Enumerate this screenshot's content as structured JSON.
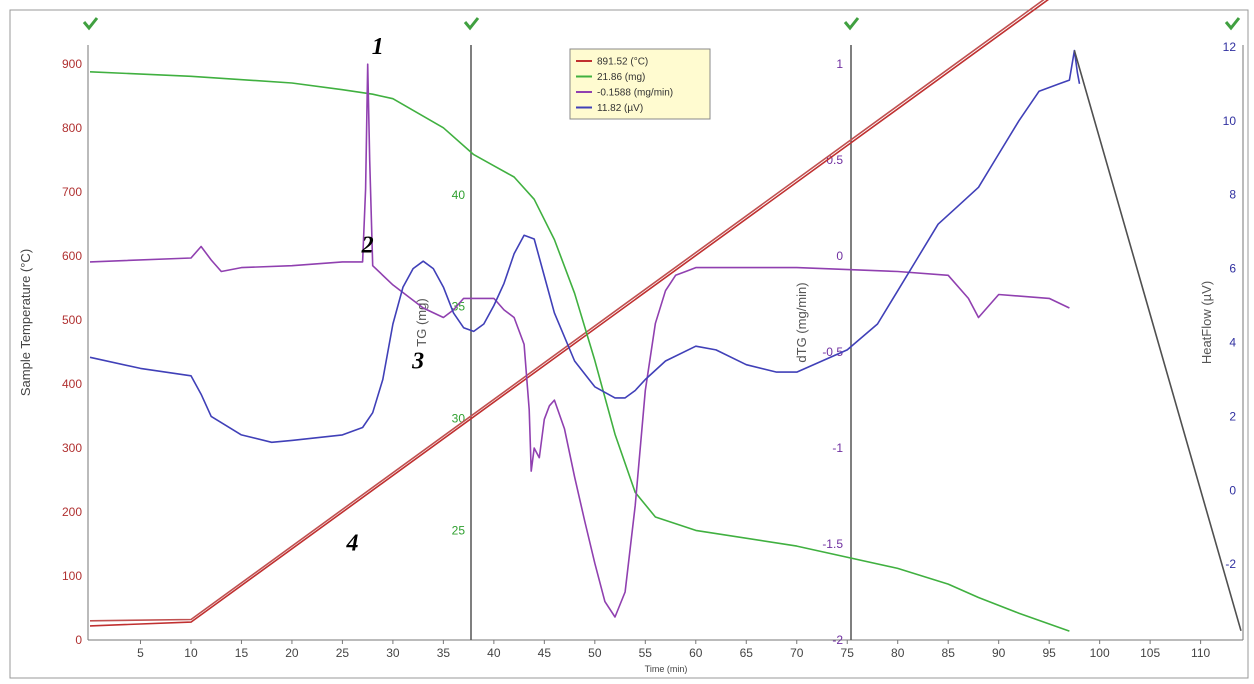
{
  "chart_data": {
    "type": "line",
    "title": "",
    "xlabel": "Time (min)",
    "xlim": [
      0,
      114
    ],
    "xticks": [
      5,
      10,
      15,
      20,
      25,
      30,
      35,
      40,
      45,
      50,
      55,
      60,
      65,
      70,
      75,
      80,
      85,
      90,
      95,
      100,
      105,
      110
    ],
    "axes": [
      {
        "id": "temp",
        "label": "Sample Temperature (°C)",
        "color": "#b03030",
        "ylim": [
          0,
          930
        ],
        "ticks": [
          0,
          100,
          200,
          300,
          400,
          500,
          600,
          700,
          800,
          900
        ]
      },
      {
        "id": "tg",
        "label": "TG (mg)",
        "color": "#30a030",
        "ylim": [
          20.1,
          46.7
        ],
        "ticks": [
          25,
          30,
          35,
          40
        ]
      },
      {
        "id": "dtg",
        "label": "dTG (mg/min)",
        "color": "#7030a0",
        "ylim": [
          -2.0,
          1.1
        ],
        "ticks": [
          -2,
          -1.5,
          -1,
          -0.5,
          0,
          0.5,
          1
        ]
      },
      {
        "id": "hf",
        "label": "HeatFlow (µV)",
        "color": "#3030a0",
        "ylim": [
          -4.05,
          12.05
        ],
        "ticks": [
          -2,
          0,
          2,
          4,
          6,
          8,
          10,
          12
        ]
      }
    ],
    "series": [
      {
        "name": "891.52 (°C)",
        "axis": "temp",
        "color": "#c03030",
        "x": [
          0,
          10,
          97
        ],
        "y": [
          22,
          28,
          1025
        ]
      },
      {
        "name": "",
        "axis": "temp",
        "color": "#c05050",
        "x": [
          0,
          10,
          97
        ],
        "y": [
          30,
          32,
          1030
        ]
      },
      {
        "name": "21.86 (mg)",
        "axis": "tg",
        "color": "#40b040",
        "x": [
          0,
          10,
          20,
          25,
          28,
          30,
          35,
          38,
          40,
          42,
          44,
          46,
          48,
          50,
          52,
          54,
          56,
          60,
          70,
          80,
          85,
          88,
          92,
          97
        ],
        "y": [
          45.5,
          45.3,
          45,
          44.7,
          44.5,
          44.3,
          43,
          41.8,
          41.3,
          40.8,
          39.8,
          38,
          35.6,
          32.6,
          29.3,
          26.7,
          25.6,
          25,
          24.3,
          23.3,
          22.6,
          22,
          21.3,
          20.5
        ]
      },
      {
        "name": "-0.1588 (mg/min)",
        "axis": "dtg",
        "color": "#9040b0",
        "x": [
          0,
          10,
          11,
          12,
          13,
          15,
          20,
          25,
          27,
          27.3,
          27.5,
          27.7,
          28,
          30,
          33,
          35,
          36,
          37,
          38,
          39,
          40,
          41,
          42,
          43,
          43.5,
          43.7,
          44,
          44.5,
          45,
          45.5,
          46,
          47,
          48,
          49,
          50,
          51,
          52,
          53,
          54,
          55,
          56,
          57,
          58,
          59,
          60,
          65,
          70,
          80,
          85,
          87,
          88,
          90,
          95,
          97
        ],
        "y": [
          -0.03,
          -0.01,
          0.05,
          -0.02,
          -0.08,
          -0.06,
          -0.05,
          -0.03,
          -0.03,
          0.35,
          1.0,
          0.5,
          -0.05,
          -0.15,
          -0.27,
          -0.32,
          -0.28,
          -0.22,
          -0.22,
          -0.22,
          -0.22,
          -0.28,
          -0.32,
          -0.46,
          -0.8,
          -1.12,
          -1.0,
          -1.05,
          -0.85,
          -0.78,
          -0.75,
          -0.9,
          -1.15,
          -1.38,
          -1.6,
          -1.8,
          -1.88,
          -1.75,
          -1.3,
          -0.7,
          -0.35,
          -0.18,
          -0.1,
          -0.08,
          -0.06,
          -0.06,
          -0.06,
          -0.08,
          -0.1,
          -0.22,
          -0.32,
          -0.2,
          -0.22,
          -0.27
        ]
      },
      {
        "name": "11.82 (µV)",
        "axis": "hf",
        "color": "#4040b8",
        "x": [
          0,
          5,
          10,
          11,
          12,
          15,
          18,
          20,
          25,
          27,
          28,
          29,
          30,
          31,
          32,
          33,
          34,
          35,
          36,
          37,
          38,
          39,
          40,
          41,
          42,
          43,
          44,
          45,
          46,
          48,
          50,
          52,
          53,
          54,
          55,
          57,
          60,
          62,
          65,
          68,
          70,
          75,
          78,
          80,
          82,
          84,
          86,
          88,
          90,
          92,
          94,
          96,
          97,
          97.5,
          97.8,
          98
        ],
        "y": [
          3.6,
          3.3,
          3.1,
          2.6,
          2.0,
          1.5,
          1.3,
          1.35,
          1.5,
          1.7,
          2.1,
          3.0,
          4.5,
          5.5,
          6.0,
          6.2,
          6.0,
          5.5,
          4.8,
          4.4,
          4.3,
          4.5,
          5.0,
          5.6,
          6.4,
          6.9,
          6.8,
          5.8,
          4.8,
          3.5,
          2.8,
          2.5,
          2.5,
          2.7,
          3.0,
          3.5,
          3.9,
          3.8,
          3.4,
          3.2,
          3.2,
          3.8,
          4.5,
          5.4,
          6.3,
          7.2,
          7.7,
          8.2,
          9.1,
          10.0,
          10.8,
          11.0,
          11.1,
          11.9,
          11.3,
          11.0
        ]
      },
      {
        "name": "",
        "axis": "hf",
        "color": "#505050",
        "x": [
          97.5,
          114
        ],
        "y": [
          11.9,
          -3.8
        ]
      }
    ],
    "annotations": [
      {
        "text": "1",
        "x": 28.5,
        "axis": "tg",
        "y": 46.3
      },
      {
        "text": "2",
        "x": 27.5,
        "axis": "dtg",
        "y": 0.02
      },
      {
        "text": "3",
        "x": 32.5,
        "axis": "hf",
        "y": 3.3
      },
      {
        "text": "4",
        "x": 26,
        "axis": "temp",
        "y": 140
      }
    ],
    "legend": {
      "position": "top-center",
      "entries": [
        "891.52 (°C)",
        "21.86 (mg)",
        "-0.1588 (mg/min)",
        "11.82 (µV)"
      ]
    },
    "grid": false
  }
}
